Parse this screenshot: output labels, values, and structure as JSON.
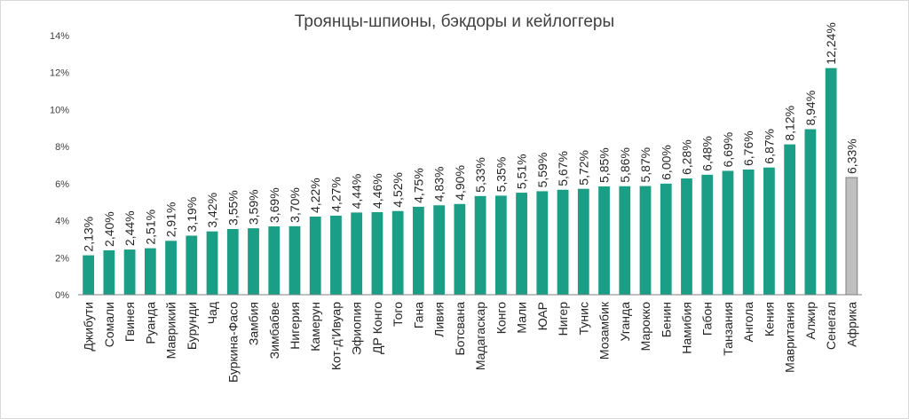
{
  "chart_data": {
    "type": "bar",
    "title": "Троянцы-шпионы, бэкдоры и кейлоггеры",
    "xlabel": "",
    "ylabel": "",
    "ylim": [
      0,
      14
    ],
    "yticks": [
      "0%",
      "2%",
      "4%",
      "6%",
      "8%",
      "10%",
      "12%",
      "14%"
    ],
    "grid": false,
    "colors": {
      "bar": "#1a9e86",
      "highlight": "#bfbfbf",
      "axis": "#808080"
    },
    "categories": [
      "Джибути",
      "Сомали",
      "Гвинея",
      "Руанда",
      "Маврикий",
      "Бурунди",
      "Чад",
      "Буркина-Фасо",
      "Замбия",
      "Зимбабве",
      "Нигерия",
      "Камерун",
      "Кот-д'Ивуар",
      "Эфиопия",
      "ДР Конго",
      "Того",
      "Гана",
      "Ливия",
      "Ботсвана",
      "Мадагаскар",
      "Конго",
      "Мали",
      "ЮАР",
      "Нигер",
      "Тунис",
      "Мозамбик",
      "Уганда",
      "Марокко",
      "Бенин",
      "Намибия",
      "Габон",
      "Танзания",
      "Ангола",
      "Кения",
      "Мавритания",
      "Алжир",
      "Сенегал",
      "Африка"
    ],
    "values": [
      2.13,
      2.4,
      2.44,
      2.51,
      2.91,
      3.19,
      3.42,
      3.55,
      3.59,
      3.69,
      3.7,
      4.22,
      4.27,
      4.44,
      4.46,
      4.52,
      4.75,
      4.83,
      4.9,
      5.33,
      5.35,
      5.51,
      5.59,
      5.67,
      5.72,
      5.85,
      5.86,
      5.87,
      6.0,
      6.28,
      6.48,
      6.69,
      6.76,
      6.87,
      8.12,
      8.94,
      12.24,
      6.33
    ],
    "labels": [
      "2,13%",
      "2,40%",
      "2,44%",
      "2,51%",
      "2,91%",
      "3,19%",
      "3,42%",
      "3,55%",
      "3,59%",
      "3,69%",
      "3,70%",
      "4,22%",
      "4,27%",
      "4,44%",
      "4,46%",
      "4,52%",
      "4,75%",
      "4,83%",
      "4,90%",
      "5,33%",
      "5,35%",
      "5,51%",
      "5,59%",
      "5,67%",
      "5,72%",
      "5,85%",
      "5,86%",
      "5,87%",
      "6,00%",
      "6,28%",
      "6,48%",
      "6,69%",
      "6,76%",
      "6,87%",
      "8,12%",
      "8,94%",
      "12,24%",
      "6,33%"
    ],
    "highlight_category": "Африка"
  }
}
